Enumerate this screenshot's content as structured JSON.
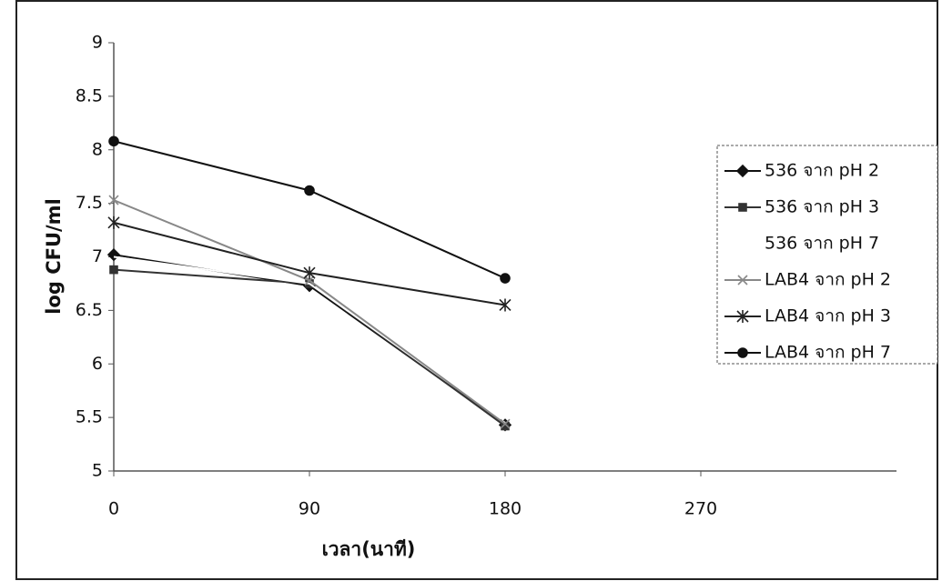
{
  "chart_data": {
    "type": "line",
    "x_label": "เวลา(นาที)",
    "y_label": "log CFU/ml",
    "x": [
      0,
      90,
      180
    ],
    "xlim": [
      0,
      360
    ],
    "xticks": [
      0,
      90,
      180,
      270
    ],
    "ylim": [
      5,
      9
    ],
    "yticks": [
      5,
      5.5,
      6,
      6.5,
      7,
      7.5,
      8,
      8.5,
      9
    ],
    "legend": "right",
    "series": [
      {
        "name": "536 จาก pH 2",
        "color": "#111111",
        "marker": "diamond",
        "values": [
          7.02,
          6.73,
          5.43
        ]
      },
      {
        "name": "536 จาก pH 3",
        "color": "#333333",
        "marker": "square",
        "values": [
          6.88,
          6.75,
          5.42
        ]
      },
      {
        "name": "536 จาก pH 7",
        "color": "#ffffff",
        "marker": "none",
        "values": [
          7.0,
          6.75,
          5.45
        ]
      },
      {
        "name": "LAB4 จาก pH 2",
        "color": "#888888",
        "marker": "x",
        "values": [
          7.53,
          6.78,
          5.44
        ]
      },
      {
        "name": "LAB4 จาก pH 3",
        "color": "#222222",
        "marker": "star",
        "values": [
          7.32,
          6.85,
          6.55
        ]
      },
      {
        "name": "LAB4 จาก pH 7",
        "color": "#111111",
        "marker": "circle",
        "values": [
          8.08,
          7.62,
          6.8
        ]
      }
    ]
  }
}
